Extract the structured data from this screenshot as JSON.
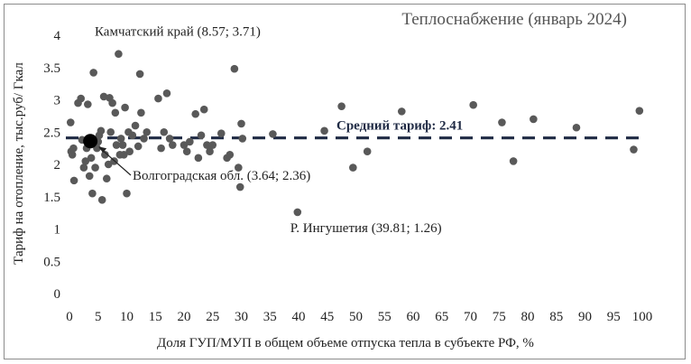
{
  "chart_data": {
    "type": "scatter",
    "title": "Теплоснабжение (январь 2024)",
    "xlabel": "Доля ГУП/МУП в общем объеме отпуска тепла в субъекте РФ, %",
    "ylabel": "Тариф на отопление, тыс.руб/ Гкал",
    "xlim": [
      0,
      100
    ],
    "ylim": [
      0,
      4
    ],
    "x_ticks": [
      "0",
      "5",
      "10",
      "15",
      "20",
      "25",
      "30",
      "35",
      "40",
      "45",
      "50",
      "55",
      "60",
      "65",
      "70",
      "75",
      "80",
      "85",
      "90",
      "95",
      "100"
    ],
    "y_ticks": [
      "0",
      "0.5",
      "1",
      "1.5",
      "2",
      "2.5",
      "3",
      "3.5",
      "4"
    ],
    "grid": false,
    "mean_line": {
      "value": 2.41,
      "label": "Средний тариф: 2.41",
      "color": "#1f2a44"
    },
    "point_color": "#595959",
    "highlight_color": "#000000",
    "annotations": [
      {
        "text": "Камчатский край (8.57; 3.71)",
        "x": 8.57,
        "y": 3.71
      },
      {
        "text": "Волгоградская обл. (3.64; 2.36)",
        "x": 3.64,
        "y": 2.36,
        "highlight": true
      },
      {
        "text": "Р. Ингушетия (39.81; 1.26)",
        "x": 39.81,
        "y": 1.26
      }
    ],
    "points": [
      {
        "x": 0.2,
        "y": 2.65
      },
      {
        "x": 0.3,
        "y": 2.2
      },
      {
        "x": 0.5,
        "y": 2.15
      },
      {
        "x": 0.7,
        "y": 2.25
      },
      {
        "x": 0.8,
        "y": 1.75
      },
      {
        "x": 1.5,
        "y": 2.95
      },
      {
        "x": 2.0,
        "y": 3.02
      },
      {
        "x": 2.2,
        "y": 2.38
      },
      {
        "x": 2.5,
        "y": 1.95
      },
      {
        "x": 2.8,
        "y": 2.05
      },
      {
        "x": 3.0,
        "y": 2.25
      },
      {
        "x": 3.2,
        "y": 2.93
      },
      {
        "x": 3.5,
        "y": 1.82
      },
      {
        "x": 3.8,
        "y": 2.1
      },
      {
        "x": 4.0,
        "y": 1.55
      },
      {
        "x": 4.2,
        "y": 3.42
      },
      {
        "x": 4.5,
        "y": 1.95
      },
      {
        "x": 4.8,
        "y": 2.25
      },
      {
        "x": 5.0,
        "y": 2.35
      },
      {
        "x": 5.2,
        "y": 2.45
      },
      {
        "x": 5.5,
        "y": 2.52
      },
      {
        "x": 5.7,
        "y": 1.45
      },
      {
        "x": 6.0,
        "y": 3.05
      },
      {
        "x": 6.2,
        "y": 2.15
      },
      {
        "x": 6.5,
        "y": 1.78
      },
      {
        "x": 6.8,
        "y": 2.0
      },
      {
        "x": 7.0,
        "y": 3.03
      },
      {
        "x": 7.2,
        "y": 2.5
      },
      {
        "x": 7.5,
        "y": 2.95
      },
      {
        "x": 7.8,
        "y": 2.05
      },
      {
        "x": 8.0,
        "y": 2.8
      },
      {
        "x": 8.2,
        "y": 2.3
      },
      {
        "x": 8.57,
        "y": 3.71
      },
      {
        "x": 8.8,
        "y": 2.15
      },
      {
        "x": 9.0,
        "y": 2.4
      },
      {
        "x": 9.3,
        "y": 2.3
      },
      {
        "x": 9.5,
        "y": 2.15
      },
      {
        "x": 9.7,
        "y": 2.88
      },
      {
        "x": 10.0,
        "y": 1.55
      },
      {
        "x": 10.3,
        "y": 2.5
      },
      {
        "x": 10.5,
        "y": 2.2
      },
      {
        "x": 11.0,
        "y": 2.45
      },
      {
        "x": 11.5,
        "y": 2.6
      },
      {
        "x": 12.0,
        "y": 2.28
      },
      {
        "x": 12.3,
        "y": 3.4
      },
      {
        "x": 12.5,
        "y": 2.8
      },
      {
        "x": 13.0,
        "y": 2.4
      },
      {
        "x": 13.5,
        "y": 2.5
      },
      {
        "x": 15.5,
        "y": 3.02
      },
      {
        "x": 16.0,
        "y": 2.25
      },
      {
        "x": 16.5,
        "y": 2.5
      },
      {
        "x": 17.0,
        "y": 3.1
      },
      {
        "x": 17.5,
        "y": 2.4
      },
      {
        "x": 18.0,
        "y": 2.3
      },
      {
        "x": 20.0,
        "y": 2.3
      },
      {
        "x": 20.5,
        "y": 2.2
      },
      {
        "x": 21.0,
        "y": 2.35
      },
      {
        "x": 22.0,
        "y": 2.78
      },
      {
        "x": 22.5,
        "y": 2.1
      },
      {
        "x": 23.0,
        "y": 2.45
      },
      {
        "x": 23.5,
        "y": 2.85
      },
      {
        "x": 24.0,
        "y": 2.3
      },
      {
        "x": 24.5,
        "y": 2.2
      },
      {
        "x": 25.0,
        "y": 2.3
      },
      {
        "x": 26.5,
        "y": 2.48
      },
      {
        "x": 27.5,
        "y": 2.1
      },
      {
        "x": 28.0,
        "y": 2.15
      },
      {
        "x": 28.8,
        "y": 3.48
      },
      {
        "x": 29.5,
        "y": 1.95
      },
      {
        "x": 29.8,
        "y": 1.65
      },
      {
        "x": 30.0,
        "y": 2.63
      },
      {
        "x": 30.2,
        "y": 2.4
      },
      {
        "x": 35.5,
        "y": 2.47
      },
      {
        "x": 39.81,
        "y": 1.26
      },
      {
        "x": 44.5,
        "y": 2.52
      },
      {
        "x": 47.5,
        "y": 2.9
      },
      {
        "x": 49.5,
        "y": 1.95
      },
      {
        "x": 52.0,
        "y": 2.2
      },
      {
        "x": 58.0,
        "y": 2.82
      },
      {
        "x": 70.5,
        "y": 2.92
      },
      {
        "x": 75.5,
        "y": 2.65
      },
      {
        "x": 77.5,
        "y": 2.05
      },
      {
        "x": 81.0,
        "y": 2.7
      },
      {
        "x": 88.5,
        "y": 2.57
      },
      {
        "x": 98.5,
        "y": 2.23
      },
      {
        "x": 99.5,
        "y": 2.83
      }
    ]
  }
}
